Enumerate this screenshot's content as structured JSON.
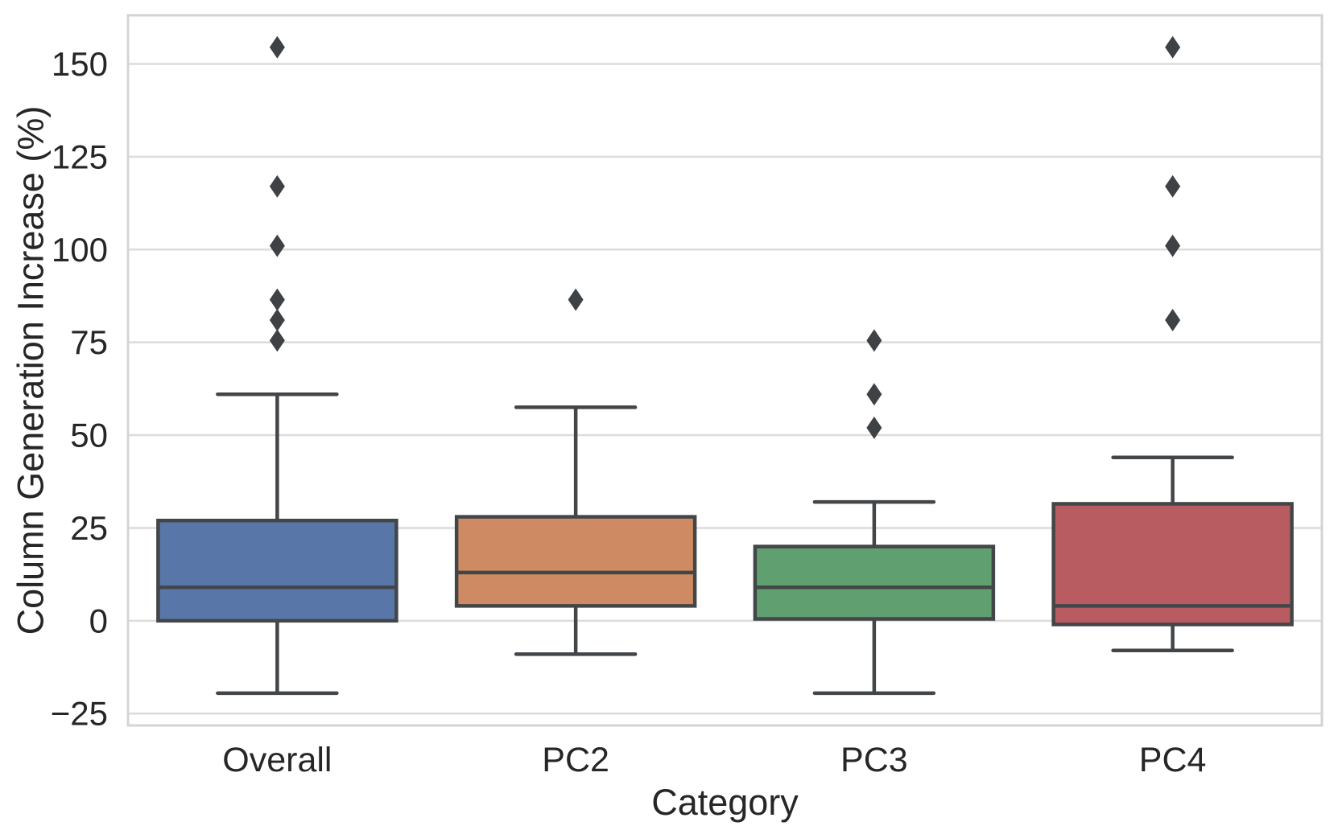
{
  "chart_data": {
    "type": "boxplot",
    "title": "",
    "xlabel": "Category",
    "ylabel": "Column Generation Increase (%)",
    "categories": [
      "Overall",
      "PC2",
      "PC3",
      "PC4"
    ],
    "y_ticks": [
      -25,
      0,
      25,
      50,
      75,
      100,
      125,
      150
    ],
    "ylim": [
      -28.2,
      163.1
    ],
    "grid": true,
    "legend": "none",
    "series": [
      {
        "category": "Overall",
        "color": "#5877A8",
        "whisker_low": -19.5,
        "q1": 0,
        "median": 9,
        "q3": 27,
        "whisker_high": 61,
        "outliers": [
          75.5,
          81,
          86.5,
          101,
          117,
          154.5
        ]
      },
      {
        "category": "PC2",
        "color": "#CE8A62",
        "whisker_low": -9,
        "q1": 4,
        "median": 13,
        "q3": 28,
        "whisker_high": 57.5,
        "outliers": [
          86.5
        ]
      },
      {
        "category": "PC3",
        "color": "#609F70",
        "whisker_low": -19.5,
        "q1": 0.5,
        "median": 9,
        "q3": 20,
        "whisker_high": 32,
        "outliers": [
          52,
          61,
          75.5
        ]
      },
      {
        "category": "PC4",
        "color": "#B85C61",
        "whisker_low": -8,
        "q1": -1,
        "median": 4,
        "q3": 31.5,
        "whisker_high": 44,
        "outliers": [
          81,
          101,
          117,
          154.5
        ]
      }
    ],
    "colors": {
      "box_line": "#434649",
      "flier": "#3F4245",
      "grid_line": "#DCDCDC",
      "frame": "#D4D4D4",
      "text": "#262626",
      "background": "#FFFFFF"
    }
  }
}
